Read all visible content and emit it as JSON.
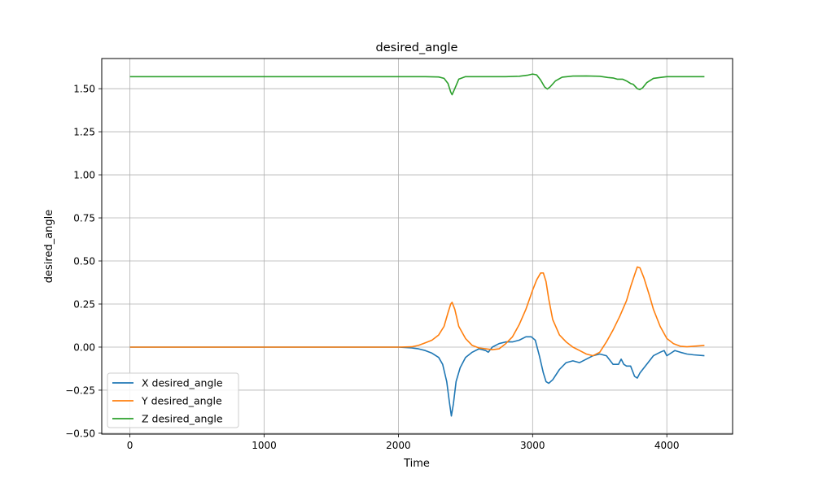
{
  "chart_data": {
    "type": "line",
    "title": "desired_angle",
    "xlabel": "Time",
    "ylabel": "desired_angle",
    "xlim": [
      -210,
      4490
    ],
    "ylim": [
      -0.505,
      1.675
    ],
    "xticks": [
      0,
      1000,
      2000,
      3000,
      4000
    ],
    "xtick_labels": [
      "0",
      "1000",
      "2000",
      "3000",
      "4000"
    ],
    "yticks": [
      -0.5,
      -0.25,
      0.0,
      0.25,
      0.5,
      0.75,
      1.0,
      1.25,
      1.5
    ],
    "ytick_labels": [
      "−0.50",
      "−0.25",
      "0.00",
      "0.25",
      "0.50",
      "0.75",
      "1.00",
      "1.25",
      "1.50"
    ],
    "grid": true,
    "legend_position": "lower-left",
    "series": [
      {
        "name": "X desired_angle",
        "color": "#1f77b4",
        "x": [
          0,
          500,
          1000,
          1500,
          2000,
          2100,
          2150,
          2200,
          2250,
          2300,
          2330,
          2360,
          2380,
          2395,
          2410,
          2430,
          2460,
          2500,
          2550,
          2600,
          2650,
          2670,
          2700,
          2750,
          2800,
          2850,
          2900,
          2950,
          2990,
          3020,
          3050,
          3080,
          3100,
          3120,
          3150,
          3200,
          3250,
          3300,
          3350,
          3400,
          3450,
          3500,
          3550,
          3600,
          3640,
          3660,
          3680,
          3700,
          3730,
          3760,
          3780,
          3800,
          3830,
          3860,
          3900,
          3950,
          3980,
          4000,
          4020,
          4060,
          4100,
          4150,
          4200,
          4280
        ],
        "y": [
          0.0,
          0.0,
          0.0,
          0.0,
          0.0,
          -0.005,
          -0.01,
          -0.02,
          -0.035,
          -0.06,
          -0.1,
          -0.2,
          -0.32,
          -0.4,
          -0.33,
          -0.2,
          -0.12,
          -0.06,
          -0.03,
          -0.01,
          -0.02,
          -0.03,
          0.0,
          0.02,
          0.03,
          0.03,
          0.04,
          0.06,
          0.06,
          0.04,
          -0.05,
          -0.15,
          -0.2,
          -0.21,
          -0.19,
          -0.13,
          -0.09,
          -0.08,
          -0.09,
          -0.07,
          -0.05,
          -0.04,
          -0.05,
          -0.1,
          -0.1,
          -0.07,
          -0.1,
          -0.11,
          -0.11,
          -0.17,
          -0.18,
          -0.15,
          -0.12,
          -0.09,
          -0.05,
          -0.03,
          -0.02,
          -0.05,
          -0.04,
          -0.02,
          -0.03,
          -0.04,
          -0.045,
          -0.05
        ]
      },
      {
        "name": "Y desired_angle",
        "color": "#ff7f0e",
        "x": [
          0,
          500,
          1000,
          1500,
          2000,
          2100,
          2150,
          2200,
          2250,
          2300,
          2340,
          2370,
          2390,
          2400,
          2420,
          2450,
          2500,
          2550,
          2600,
          2650,
          2700,
          2750,
          2800,
          2850,
          2900,
          2950,
          3000,
          3030,
          3060,
          3080,
          3100,
          3120,
          3150,
          3200,
          3250,
          3300,
          3350,
          3400,
          3450,
          3500,
          3550,
          3600,
          3650,
          3700,
          3730,
          3760,
          3780,
          3800,
          3830,
          3870,
          3900,
          3950,
          4000,
          4050,
          4100,
          4150,
          4200,
          4280
        ],
        "y": [
          0.0,
          0.0,
          0.0,
          0.0,
          0.0,
          0.002,
          0.01,
          0.025,
          0.04,
          0.07,
          0.12,
          0.2,
          0.25,
          0.26,
          0.22,
          0.12,
          0.05,
          0.01,
          -0.005,
          -0.01,
          -0.015,
          -0.01,
          0.02,
          0.06,
          0.13,
          0.22,
          0.33,
          0.39,
          0.43,
          0.43,
          0.38,
          0.28,
          0.16,
          0.07,
          0.03,
          0.0,
          -0.02,
          -0.04,
          -0.05,
          -0.03,
          0.03,
          0.1,
          0.18,
          0.27,
          0.35,
          0.42,
          0.465,
          0.46,
          0.4,
          0.3,
          0.22,
          0.12,
          0.05,
          0.02,
          0.005,
          0.002,
          0.005,
          0.01
        ]
      },
      {
        "name": "Z desired_angle",
        "color": "#2ca02c",
        "x": [
          0,
          500,
          1000,
          1500,
          2000,
          2200,
          2300,
          2340,
          2370,
          2390,
          2400,
          2420,
          2450,
          2500,
          2600,
          2700,
          2800,
          2900,
          2960,
          3000,
          3030,
          3060,
          3090,
          3110,
          3130,
          3170,
          3220,
          3300,
          3400,
          3500,
          3560,
          3600,
          3630,
          3650,
          3670,
          3700,
          3730,
          3750,
          3780,
          3800,
          3820,
          3850,
          3900,
          3950,
          4000,
          4100,
          4200,
          4280
        ],
        "y": [
          1.57,
          1.57,
          1.57,
          1.57,
          1.57,
          1.57,
          1.568,
          1.56,
          1.53,
          1.48,
          1.465,
          1.5,
          1.555,
          1.57,
          1.57,
          1.57,
          1.57,
          1.572,
          1.578,
          1.585,
          1.58,
          1.55,
          1.51,
          1.498,
          1.51,
          1.545,
          1.567,
          1.573,
          1.574,
          1.572,
          1.565,
          1.562,
          1.555,
          1.555,
          1.555,
          1.545,
          1.53,
          1.525,
          1.5,
          1.495,
          1.505,
          1.535,
          1.56,
          1.565,
          1.57,
          1.57,
          1.57,
          1.57
        ]
      }
    ]
  }
}
